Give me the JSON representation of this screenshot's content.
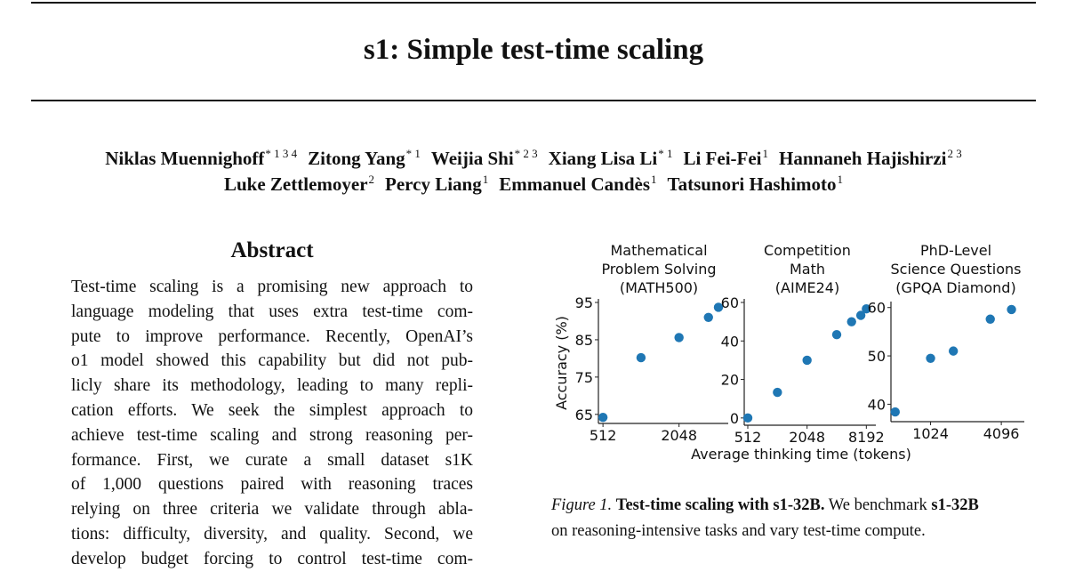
{
  "paper": {
    "title": "s1: Simple test-time scaling",
    "authors_line1": [
      {
        "name": "Niklas Muennighoff",
        "marks": "* 1 3 4"
      },
      {
        "name": "Zitong Yang",
        "marks": "* 1"
      },
      {
        "name": "Weijia Shi",
        "marks": "* 2 3"
      },
      {
        "name": "Xiang Lisa Li",
        "marks": "* 1"
      },
      {
        "name": "Li Fei-Fei",
        "marks": "1"
      },
      {
        "name": "Hannaneh Hajishirzi",
        "marks": "2 3"
      }
    ],
    "authors_line2": [
      {
        "name": "Luke Zettlemoyer",
        "marks": "2"
      },
      {
        "name": "Percy Liang",
        "marks": "1"
      },
      {
        "name": "Emmanuel Candès",
        "marks": "1"
      },
      {
        "name": "Tatsunori Hashimoto",
        "marks": "1"
      }
    ]
  },
  "abstract": {
    "heading": "Abstract",
    "lines": [
      "Test-time scaling is a promising new approach to",
      "language modeling that uses extra test-time com-",
      "pute to improve performance. Recently, OpenAI’s",
      "o1 model showed this capability but did not pub-",
      "licly share its methodology, leading to many repli-",
      "cation efforts. We seek the simplest approach to",
      "achieve test-time scaling and strong reasoning per-",
      "formance. First, we curate a small dataset s1K",
      "of 1,000 questions paired with reasoning traces",
      "relying on three criteria we validate through abla-",
      "tions: difficulty, diversity, and quality. Second, we",
      "develop budget forcing to control test-time com-"
    ]
  },
  "chart_data": [
    {
      "type": "scatter",
      "title": "Mathematical Problem Solving (MATH500)",
      "title_lines": [
        "Mathematical",
        "Problem Solving",
        "(MATH500)"
      ],
      "ylabel": "Accuracy (%)",
      "xlabel": "Average thinking time (tokens)",
      "xscale": "log2",
      "ylim": [
        64,
        95
      ],
      "yticks": [
        65,
        75,
        85,
        95
      ],
      "xticks": [
        512,
        2048
      ],
      "color": "#1f77b4",
      "points": [
        {
          "x": 512,
          "y": 64.2
        },
        {
          "x": 1024,
          "y": 80.2
        },
        {
          "x": 2048,
          "y": 85.6
        },
        {
          "x": 3500,
          "y": 91.0
        },
        {
          "x": 4200,
          "y": 93.7
        }
      ]
    },
    {
      "type": "scatter",
      "title": "Competition Math (AIME24)",
      "title_lines": [
        "Competition",
        "Math",
        "(AIME24)"
      ],
      "xscale": "log2",
      "ylim": [
        -1,
        60
      ],
      "yticks": [
        0,
        20,
        40,
        60
      ],
      "xticks": [
        512,
        2048,
        8192
      ],
      "color": "#1f77b4",
      "points": [
        {
          "x": 512,
          "y": 0
        },
        {
          "x": 1024,
          "y": 13.3
        },
        {
          "x": 2048,
          "y": 30.0
        },
        {
          "x": 4096,
          "y": 43.3
        },
        {
          "x": 5800,
          "y": 50.0
        },
        {
          "x": 7200,
          "y": 53.3
        },
        {
          "x": 8192,
          "y": 56.7
        }
      ]
    },
    {
      "type": "scatter",
      "title": "PhD-Level Science Questions (GPQA Diamond)",
      "title_lines": [
        "PhD-Level",
        "Science Questions",
        "(GPQA Diamond)"
      ],
      "xscale": "log2",
      "ylim": [
        37.5,
        60.5
      ],
      "yticks": [
        40,
        50,
        60
      ],
      "xticks": [
        1024,
        4096
      ],
      "color": "#1f77b4",
      "points": [
        {
          "x": 512,
          "y": 38.4
        },
        {
          "x": 1024,
          "y": 49.5
        },
        {
          "x": 1600,
          "y": 51.0
        },
        {
          "x": 3300,
          "y": 57.6
        },
        {
          "x": 5000,
          "y": 59.6
        }
      ]
    }
  ],
  "figure": {
    "caption_label": "Figure 1.",
    "caption_bold": "Test-time scaling with s1-32B.",
    "caption_rest": "We benchmark",
    "caption_bold2": "s1-32B",
    "caption_line2": "on reasoning-intensive tasks and vary test-time compute."
  }
}
